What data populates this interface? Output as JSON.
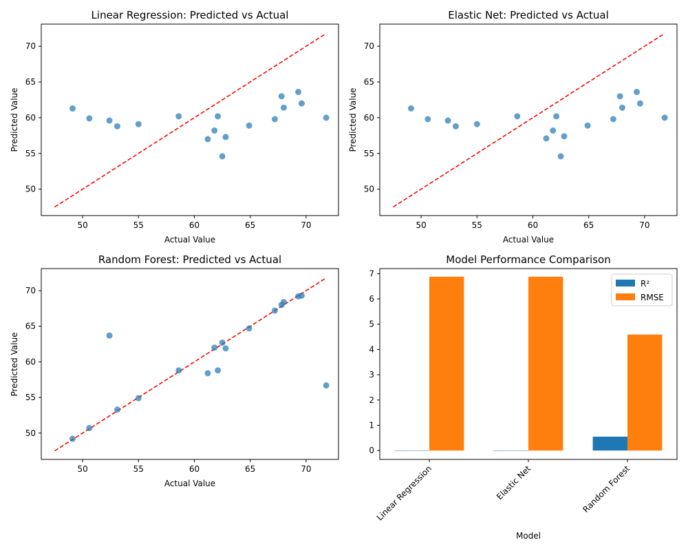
{
  "colors": {
    "point": "#1f77b4",
    "identity_line": "#ff0000",
    "r2_bar": "#1f77b4",
    "rmse_bar": "#ff7f0e",
    "axes": "#000000"
  },
  "chart_data": [
    {
      "type": "scatter",
      "title": "Linear Regression: Predicted vs Actual",
      "xlabel": "Actual Value",
      "ylabel": "Predicted Value",
      "xlim": [
        46.3,
        72.9
      ],
      "ylim": [
        46.3,
        73.1
      ],
      "xticks": [
        50,
        55,
        60,
        65,
        70
      ],
      "yticks": [
        50,
        55,
        60,
        65,
        70
      ],
      "identity_line": [
        47.5,
        71.8
      ],
      "points": [
        {
          "x": 49.1,
          "y": 61.3
        },
        {
          "x": 50.6,
          "y": 59.9
        },
        {
          "x": 52.4,
          "y": 59.6
        },
        {
          "x": 53.1,
          "y": 58.8
        },
        {
          "x": 55.0,
          "y": 59.1
        },
        {
          "x": 58.6,
          "y": 60.2
        },
        {
          "x": 61.2,
          "y": 57.0
        },
        {
          "x": 61.8,
          "y": 58.2
        },
        {
          "x": 62.1,
          "y": 60.2
        },
        {
          "x": 62.5,
          "y": 54.6
        },
        {
          "x": 62.8,
          "y": 57.3
        },
        {
          "x": 64.9,
          "y": 58.9
        },
        {
          "x": 67.2,
          "y": 59.8
        },
        {
          "x": 67.8,
          "y": 63.0
        },
        {
          "x": 68.0,
          "y": 61.4
        },
        {
          "x": 69.3,
          "y": 63.6
        },
        {
          "x": 69.6,
          "y": 62.0
        },
        {
          "x": 71.8,
          "y": 60.0
        }
      ]
    },
    {
      "type": "scatter",
      "title": "Elastic Net: Predicted vs Actual",
      "xlabel": "Actual Value",
      "ylabel": "Predicted Value",
      "xlim": [
        46.3,
        72.9
      ],
      "ylim": [
        46.3,
        73.1
      ],
      "xticks": [
        50,
        55,
        60,
        65,
        70
      ],
      "yticks": [
        50,
        55,
        60,
        65,
        70
      ],
      "identity_line": [
        47.5,
        71.8
      ],
      "points": [
        {
          "x": 49.1,
          "y": 61.3
        },
        {
          "x": 50.6,
          "y": 59.8
        },
        {
          "x": 52.4,
          "y": 59.6
        },
        {
          "x": 53.1,
          "y": 58.8
        },
        {
          "x": 55.0,
          "y": 59.1
        },
        {
          "x": 58.6,
          "y": 60.2
        },
        {
          "x": 61.2,
          "y": 57.1
        },
        {
          "x": 61.8,
          "y": 58.2
        },
        {
          "x": 62.1,
          "y": 60.2
        },
        {
          "x": 62.5,
          "y": 54.6
        },
        {
          "x": 62.8,
          "y": 57.4
        },
        {
          "x": 64.9,
          "y": 58.9
        },
        {
          "x": 67.2,
          "y": 59.8
        },
        {
          "x": 67.8,
          "y": 63.0
        },
        {
          "x": 68.0,
          "y": 61.4
        },
        {
          "x": 69.3,
          "y": 63.6
        },
        {
          "x": 69.6,
          "y": 62.0
        },
        {
          "x": 71.8,
          "y": 60.0
        }
      ]
    },
    {
      "type": "scatter",
      "title": "Random Forest: Predicted vs Actual",
      "xlabel": "Actual Value",
      "ylabel": "Predicted Value",
      "xlim": [
        46.3,
        72.9
      ],
      "ylim": [
        46.3,
        73.1
      ],
      "xticks": [
        50,
        55,
        60,
        65,
        70
      ],
      "yticks": [
        50,
        55,
        60,
        65,
        70
      ],
      "identity_line": [
        47.5,
        71.8
      ],
      "points": [
        {
          "x": 49.1,
          "y": 49.2
        },
        {
          "x": 50.6,
          "y": 50.7
        },
        {
          "x": 52.4,
          "y": 63.7
        },
        {
          "x": 53.1,
          "y": 53.3
        },
        {
          "x": 55.0,
          "y": 54.9
        },
        {
          "x": 58.6,
          "y": 58.8
        },
        {
          "x": 61.2,
          "y": 58.4
        },
        {
          "x": 61.8,
          "y": 62.0
        },
        {
          "x": 62.1,
          "y": 58.8
        },
        {
          "x": 62.5,
          "y": 62.7
        },
        {
          "x": 62.8,
          "y": 61.9
        },
        {
          "x": 64.9,
          "y": 64.7
        },
        {
          "x": 67.2,
          "y": 67.2
        },
        {
          "x": 67.8,
          "y": 68.0
        },
        {
          "x": 68.0,
          "y": 68.4
        },
        {
          "x": 69.3,
          "y": 69.2
        },
        {
          "x": 69.6,
          "y": 69.3
        },
        {
          "x": 71.8,
          "y": 56.7
        }
      ]
    },
    {
      "type": "bar",
      "title": "Model Performance Comparison",
      "xlabel": "Model",
      "ylabel": "",
      "categories": [
        "Linear Regression",
        "Elastic Net",
        "Random Forest"
      ],
      "series": [
        {
          "name": "R²",
          "values": [
            -0.01,
            -0.01,
            0.55
          ]
        },
        {
          "name": "RMSE",
          "values": [
            6.88,
            6.88,
            4.59
          ]
        }
      ],
      "ylim": [
        -0.35,
        7.2
      ],
      "yticks": [
        0,
        1,
        2,
        3,
        4,
        5,
        6,
        7
      ],
      "legend": "top-right"
    }
  ]
}
